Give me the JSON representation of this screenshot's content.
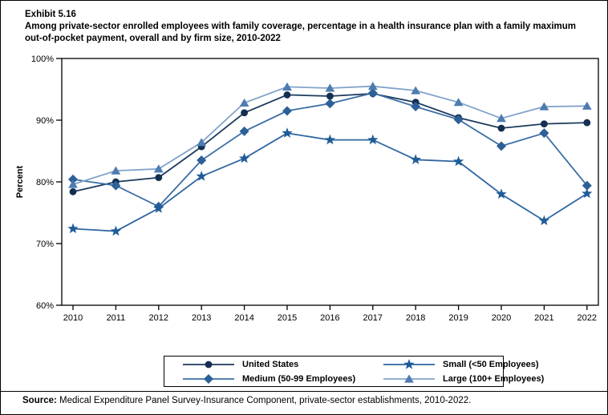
{
  "header": {
    "exhibit": "Exhibit 5.16",
    "title": "Among private-sector enrolled employees with family coverage, percentage in a health insurance plan with a family maximum out-of-pocket payment, overall and by firm size, 2010-2022"
  },
  "chart_data": {
    "type": "line",
    "x": [
      2010,
      2011,
      2012,
      2013,
      2014,
      2015,
      2016,
      2017,
      2018,
      2019,
      2020,
      2021,
      2022
    ],
    "series": [
      {
        "name": "United States",
        "marker": "circle",
        "marker_color": "#142F52",
        "line_color": "#1C3A5E",
        "values": [
          78.4,
          80.0,
          80.7,
          85.7,
          91.2,
          94.1,
          93.9,
          94.3,
          92.9,
          90.4,
          88.7,
          89.4,
          89.6
        ]
      },
      {
        "name": "Medium (50-99 Employees)",
        "marker": "diamond",
        "marker_color": "#2D6096",
        "line_color": "#3C6EA5",
        "values": [
          80.4,
          79.4,
          76.0,
          83.5,
          88.2,
          91.5,
          92.7,
          94.4,
          92.2,
          90.1,
          85.8,
          87.9,
          79.4
        ]
      },
      {
        "name": "Small (<50 Employees)",
        "marker": "star",
        "marker_color": "#1F5C97",
        "line_color": "#2F66A0",
        "values": [
          72.4,
          72.0,
          75.7,
          80.9,
          83.8,
          87.9,
          86.8,
          86.8,
          83.6,
          83.3,
          78.0,
          73.7,
          78.1
        ]
      },
      {
        "name": "Large (100+ Employees)",
        "marker": "triangle",
        "marker_color": "#4E7BB0",
        "line_color": "#82A3CA",
        "values": [
          79.6,
          81.8,
          82.1,
          86.4,
          92.8,
          95.4,
          95.2,
          95.5,
          94.8,
          92.9,
          90.3,
          92.2,
          92.3
        ]
      }
    ],
    "title": "Among private-sector enrolled employees with family coverage, percentage in a health insurance plan with a family maximum out-of-pocket payment, overall and by firm size, 2010-2022",
    "xlabel": "",
    "ylabel": "Percent",
    "ylim": [
      60,
      100
    ],
    "ytick_labels": [
      "60%",
      "70%",
      "80%",
      "90%",
      "100%"
    ],
    "grid": false,
    "legend_position": "bottom"
  },
  "legend": {
    "items": [
      "United States",
      "Small (<50 Employees)",
      "Medium (50-99 Employees)",
      "Large (100+ Employees)"
    ]
  },
  "footer": {
    "source_label": "Source:",
    "source_text": " Medical Expenditure Panel Survey-Insurance Component, private-sector establishments, 2010-2022."
  }
}
